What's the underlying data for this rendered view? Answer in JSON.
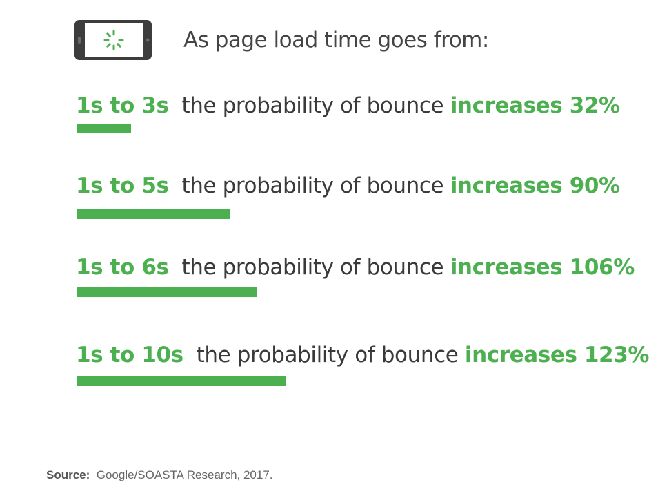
{
  "header": {
    "icon": "phone-loading-spinner-icon",
    "title": "As page load time goes from:"
  },
  "colors": {
    "accent": "#4caf50",
    "text": "#3a3a3a",
    "phone_body": "#3d3d3d"
  },
  "chart_data": {
    "type": "bar",
    "orientation": "horizontal",
    "title": "As page load time goes from:",
    "categories": [
      "1s to 3s",
      "1s to 5s",
      "1s to 6s",
      "1s to 10s"
    ],
    "values": [
      32,
      90,
      106,
      123
    ],
    "unit": "%",
    "rows": [
      {
        "range": "1s to 3s",
        "middle": "the probability of bounce",
        "increase": "increases 32%",
        "value": 32
      },
      {
        "range": "1s to 5s",
        "middle": "the probability of bounce",
        "increase": "increases 90%",
        "value": 90
      },
      {
        "range": "1s to 6s",
        "middle": "the probability of bounce",
        "increase": "increases 106%",
        "value": 106
      },
      {
        "range": "1s to 10s",
        "middle": "the probability of bounce",
        "increase": "increases 123%",
        "value": 123
      }
    ],
    "xlim": [
      0,
      155
    ],
    "grid": false,
    "legend": "none"
  },
  "source": {
    "label": "Source:",
    "text": "Google/SOASTA Research, 2017."
  }
}
